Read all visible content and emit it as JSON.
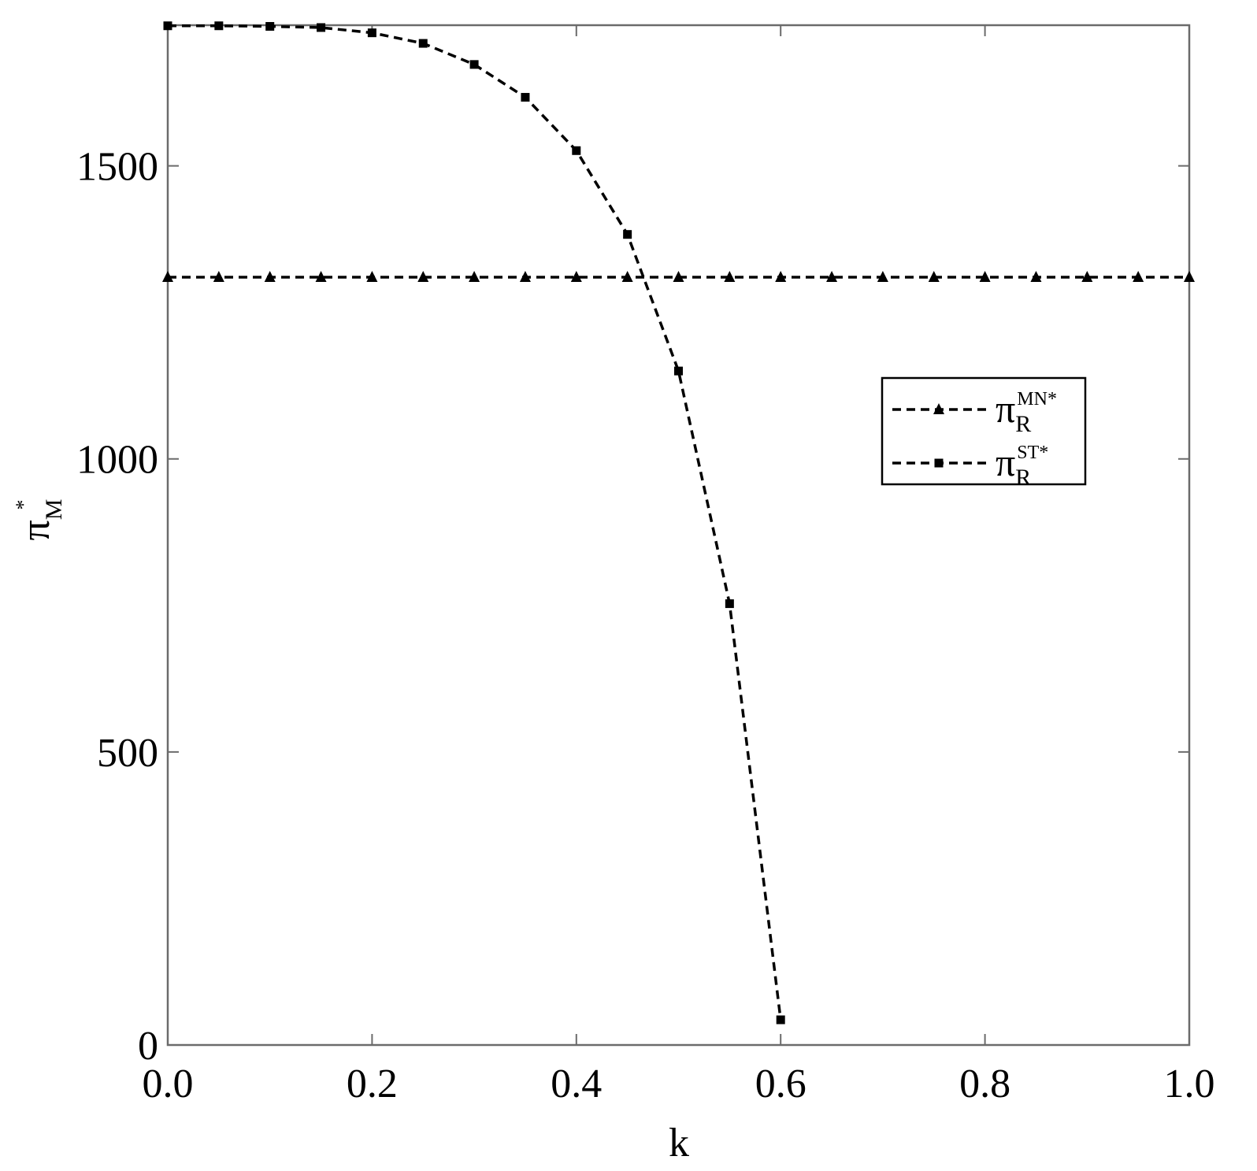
{
  "chart_data": {
    "type": "line",
    "xlabel": "k",
    "ylabel": {
      "main": "π",
      "sub": "M",
      "sup": "*"
    },
    "xlim": [
      0,
      1
    ],
    "ylim": [
      0,
      1740
    ],
    "xticks": [
      {
        "value": 0,
        "label": "0.0"
      },
      0.2,
      0.4,
      0.6,
      0.8,
      {
        "value": 1,
        "label": "1.0"
      }
    ],
    "yticks": [
      0,
      500,
      1000,
      1500
    ],
    "series": [
      {
        "name": "π",
        "sub": "R",
        "sup": "MN*",
        "color": "#000000",
        "marker": "triangle",
        "x": [
          0,
          0.05,
          0.1,
          0.15,
          0.2,
          0.25,
          0.3,
          0.35,
          0.4,
          0.45,
          0.5,
          0.55,
          0.6,
          0.65,
          0.7,
          0.75,
          0.8,
          0.85,
          0.9,
          0.95,
          1.0
        ],
        "values": [
          1310,
          1310,
          1310,
          1310,
          1310,
          1310,
          1310,
          1310,
          1310,
          1310,
          1310,
          1310,
          1310,
          1310,
          1310,
          1310,
          1310,
          1310,
          1310,
          1310,
          1310
        ]
      },
      {
        "name": "π",
        "sub": "R",
        "sup": "ST*",
        "color": "#000000",
        "marker": "square",
        "x": [
          0,
          0.05,
          0.1,
          0.15,
          0.2,
          0.25,
          0.3,
          0.35,
          0.4,
          0.45,
          0.5,
          0.55,
          0.6
        ],
        "values": [
          1739,
          1739,
          1738,
          1736,
          1727,
          1709,
          1673,
          1617,
          1526,
          1383,
          1150,
          753,
          43
        ]
      }
    ]
  }
}
